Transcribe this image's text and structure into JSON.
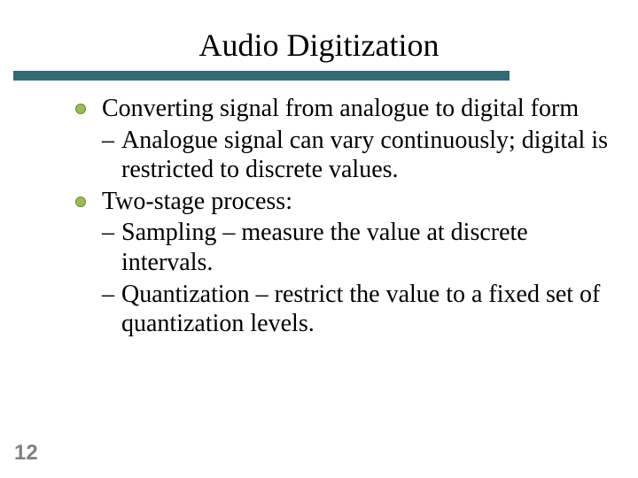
{
  "slide": {
    "title": "Audio Digitization",
    "title_fontsize": 36,
    "title_color": "#000000",
    "underline_color": "#336b74",
    "underline_width": 560,
    "underline_height": 11,
    "body_fontsize": 28,
    "body_color": "#000000",
    "bullet_fill": "#9bbb59",
    "bullet_border": "#6a8a2f",
    "background_color": "#ffffff",
    "page_number": "12",
    "page_number_color": "#808080",
    "page_number_fontsize": 24,
    "items": [
      {
        "text": "Converting signal from analogue to digital form",
        "subitems": [
          "Analogue signal can vary continuously; digital is restricted to discrete values."
        ]
      },
      {
        "text": "Two-stage process:",
        "subitems": [
          "Sampling – measure the value at discrete intervals.",
          "Quantization – restrict the value to a fixed set of quantization levels."
        ]
      }
    ]
  }
}
